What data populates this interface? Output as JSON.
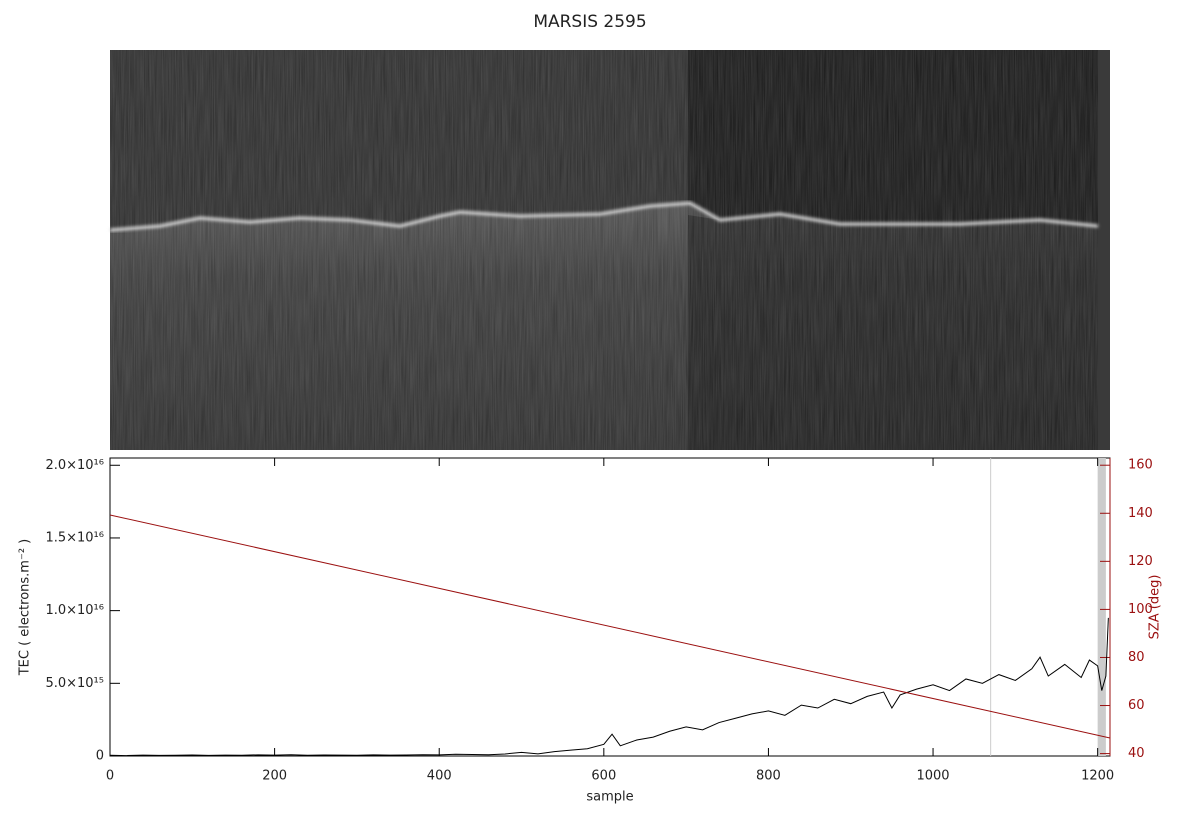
{
  "chart_data": {
    "type": "line",
    "title": "MARSIS 2595",
    "x_label": "sample",
    "y_label": "TEC ( electrons.m⁻² )",
    "y2_label": "SZA (deg)",
    "xlim": [
      0,
      1215
    ],
    "xticks": [
      0,
      200,
      400,
      600,
      800,
      1000,
      1200
    ],
    "ylim": [
      0,
      2.05e+16
    ],
    "yticks": [
      0,
      {
        "value": 5000000000000000.0,
        "label": "5.0×10¹⁵"
      },
      {
        "value": 1e+16,
        "label": "1.0×10¹⁶"
      },
      {
        "value": 1.5e+16,
        "label": "1.5×10¹⁶"
      },
      {
        "value": 2e+16,
        "label": "2.0×10¹⁶"
      }
    ],
    "y2lim": [
      39,
      163
    ],
    "y2ticks": [
      40,
      60,
      80,
      100,
      120,
      140,
      160
    ],
    "vlines": [
      1070
    ],
    "bands": [
      [
        1200,
        1210
      ]
    ],
    "series": [
      {
        "name": "TEC",
        "color": "#000000",
        "x": [
          0,
          20,
          40,
          60,
          80,
          100,
          120,
          140,
          160,
          180,
          200,
          220,
          240,
          260,
          280,
          300,
          320,
          340,
          360,
          380,
          400,
          420,
          440,
          460,
          480,
          500,
          520,
          540,
          560,
          580,
          600,
          610,
          620,
          640,
          660,
          680,
          700,
          720,
          740,
          760,
          780,
          800,
          820,
          840,
          860,
          880,
          900,
          920,
          940,
          950,
          960,
          980,
          1000,
          1020,
          1040,
          1060,
          1080,
          1100,
          1120,
          1130,
          1140,
          1160,
          1180,
          1190,
          1200,
          1205,
          1210,
          1213
        ],
        "values": [
          50000000000000.0,
          30000000000000.0,
          60000000000000.0,
          40000000000000.0,
          50000000000000.0,
          70000000000000.0,
          40000000000000.0,
          60000000000000.0,
          50000000000000.0,
          80000000000000.0,
          60000000000000.0,
          90000000000000.0,
          50000000000000.0,
          70000000000000.0,
          60000000000000.0,
          50000000000000.0,
          80000000000000.0,
          60000000000000.0,
          70000000000000.0,
          90000000000000.0,
          80000000000000.0,
          120000000000000.0,
          100000000000000.0,
          90000000000000.0,
          140000000000000.0,
          250000000000000.0,
          150000000000000.0,
          300000000000000.0,
          400000000000000.0,
          500000000000000.0,
          800000000000000.0,
          1500000000000000.0,
          700000000000000.0,
          1100000000000000.0,
          1300000000000000.0,
          1700000000000000.0,
          2000000000000000.0,
          1800000000000000.0,
          2300000000000000.0,
          2600000000000000.0,
          2900000000000000.0,
          3100000000000000.0,
          2800000000000000.0,
          3500000000000000.0,
          3300000000000000.0,
          3900000000000000.0,
          3600000000000000.0,
          4100000000000000.0,
          4400000000000000.0,
          3300000000000000.0,
          4200000000000000.0,
          4600000000000000.0,
          4900000000000000.0,
          4500000000000000.0,
          5300000000000000.0,
          5000000000000000.0,
          5600000000000000.0,
          5200000000000000.0,
          6000000000000000.0,
          6800000000000000.0,
          5500000000000000.0,
          6300000000000000.0,
          5400000000000000.0,
          6600000000000000.0,
          6200000000000000.0,
          4500000000000000.0,
          5500000000000000.0,
          9500000000000000.0
        ]
      },
      {
        "name": "SZA",
        "color": "#9b1010",
        "axis": "y2",
        "x": [
          0,
          1215
        ],
        "values": [
          139.3,
          46.5
        ]
      }
    ]
  }
}
